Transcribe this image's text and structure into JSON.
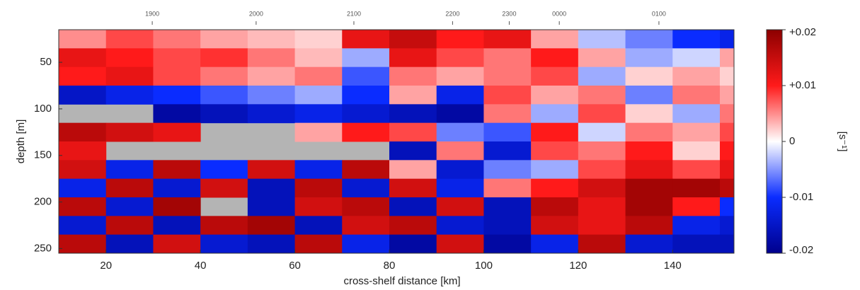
{
  "chart_data": {
    "type": "heatmap",
    "xlabel": "cross-shelf distance  [km]",
    "ylabel": "depth  [m]",
    "colorbar_label": "[s⁻¹]",
    "xlim": [
      10,
      153
    ],
    "xticks": [
      20,
      40,
      60,
      80,
      100,
      120,
      140
    ],
    "ylim": [
      15,
      255
    ],
    "yticks": [
      50,
      100,
      150,
      200,
      250
    ],
    "y_inverted": true,
    "top_ticks": [
      {
        "value": 29.8,
        "label": "1900"
      },
      {
        "value": 51.8,
        "label": "2000"
      },
      {
        "value": 72.5,
        "label": "2100"
      },
      {
        "value": 93.4,
        "label": "2200"
      },
      {
        "value": 105.4,
        "label": "2300"
      },
      {
        "value": 116.0,
        "label": "0000"
      },
      {
        "value": 137.1,
        "label": "0100"
      }
    ],
    "zlim": [
      -0.02,
      0.02
    ],
    "zticks": [
      {
        "value": 0.02,
        "label": "+0.02"
      },
      {
        "value": 0.01,
        "label": "+0.01"
      },
      0,
      -0.01,
      -0.02
    ],
    "colormap": [
      "#00008c",
      "#0a2cff",
      "#ffffff",
      "#ff1a1a",
      "#8c0000"
    ],
    "null_color": "#b4b4b4",
    "x_edges": [
      10,
      20,
      30,
      40,
      50,
      60,
      70,
      80,
      90,
      100,
      110,
      120,
      130,
      140,
      150,
      153
    ],
    "y_edges": [
      15,
      35,
      55,
      75,
      95,
      115,
      135,
      155,
      175,
      195,
      215,
      235,
      255
    ],
    "values": [
      [
        0.005,
        0.008,
        0.006,
        0.004,
        0.003,
        0.002,
        0.012,
        0.015,
        0.01,
        0.012,
        0.004,
        -0.003,
        -0.006,
        -0.01,
        -0.012
      ],
      [
        0.012,
        0.01,
        0.008,
        0.009,
        0.006,
        0.003,
        -0.004,
        0.012,
        0.008,
        0.006,
        0.01,
        0.004,
        -0.004,
        -0.002,
        0.004
      ],
      [
        0.01,
        0.012,
        0.008,
        0.006,
        0.004,
        0.006,
        -0.008,
        0.006,
        0.004,
        0.006,
        0.008,
        -0.004,
        0.002,
        0.004,
        0.002
      ],
      [
        -0.015,
        -0.012,
        -0.01,
        -0.008,
        -0.006,
        -0.004,
        -0.01,
        0.004,
        -0.012,
        0.008,
        0.004,
        0.006,
        -0.006,
        0.006,
        0.004
      ],
      [
        null,
        null,
        -0.018,
        -0.016,
        -0.014,
        -0.012,
        -0.014,
        -0.016,
        -0.018,
        0.006,
        -0.004,
        0.008,
        0.002,
        -0.004,
        0.006
      ],
      [
        0.016,
        0.014,
        0.012,
        null,
        null,
        0.004,
        0.01,
        0.008,
        -0.006,
        -0.008,
        0.01,
        -0.002,
        0.006,
        0.004,
        0.008
      ],
      [
        0.012,
        null,
        null,
        null,
        null,
        null,
        null,
        -0.016,
        0.006,
        -0.014,
        0.008,
        0.006,
        0.01,
        0.002,
        0.01
      ],
      [
        0.014,
        -0.012,
        0.016,
        -0.01,
        0.014,
        -0.012,
        0.016,
        0.004,
        -0.014,
        -0.006,
        -0.004,
        0.008,
        0.012,
        0.008,
        0.012
      ],
      [
        -0.012,
        0.016,
        -0.014,
        0.014,
        -0.016,
        0.016,
        -0.014,
        0.014,
        -0.012,
        0.006,
        0.01,
        0.014,
        0.018,
        0.018,
        0.016
      ],
      [
        0.016,
        -0.014,
        0.018,
        null,
        -0.016,
        0.014,
        0.016,
        -0.016,
        0.014,
        -0.016,
        0.016,
        0.012,
        0.018,
        0.01,
        -0.01
      ],
      [
        -0.014,
        0.016,
        -0.016,
        0.016,
        0.018,
        -0.016,
        0.014,
        0.016,
        -0.014,
        -0.016,
        0.014,
        0.012,
        0.016,
        -0.012,
        -0.014
      ],
      [
        0.016,
        -0.016,
        0.014,
        -0.014,
        -0.016,
        0.016,
        -0.012,
        -0.018,
        0.014,
        -0.018,
        -0.012,
        0.016,
        -0.014,
        -0.016,
        -0.016
      ]
    ]
  }
}
